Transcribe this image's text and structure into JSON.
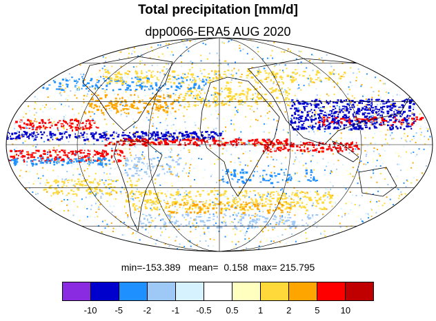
{
  "title": "Total precipitation [mm/d]",
  "subtitle": "dpp0066-ERA5 AUG 2020",
  "stats": {
    "min_label": "min=",
    "min": "-153.389",
    "mean_label": "mean=",
    "mean": "0.158",
    "max_label": "max=",
    "max": "215.795"
  },
  "colorbar": {
    "colors": [
      "#8a2be2",
      "#0000cd",
      "#1e90ff",
      "#9ec8f5",
      "#d6f2ff",
      "#ffffff",
      "#ffffc0",
      "#ffd93a",
      "#ffa500",
      "#ff0000",
      "#c00000"
    ],
    "tick_labels": [
      "-10",
      "-5",
      "-2",
      "-1",
      "-0.5",
      "0.5",
      "1",
      "2",
      "5",
      "10"
    ]
  },
  "map": {
    "projection": "Mollweide",
    "grid": true,
    "coastlines": true
  }
}
